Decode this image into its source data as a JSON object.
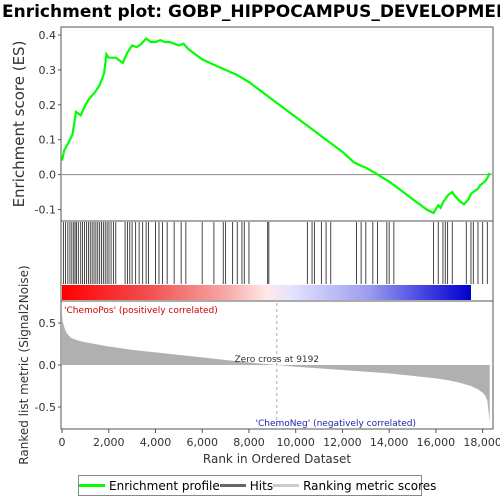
{
  "title": "Enrichment plot: GOBP_HIPPOCAMPUS_DEVELOPMENT",
  "legend": {
    "items": [
      {
        "label": "Enrichment profile",
        "color": "#00ff00"
      },
      {
        "label": "Hits",
        "color": "#666666"
      },
      {
        "label": "Ranking metric scores",
        "color": "#cccccc"
      }
    ]
  },
  "chart_data": [
    {
      "type": "line",
      "name": "enrichment-profile",
      "ylabel": "Enrichment score (ES)",
      "xlim": [
        0,
        18400
      ],
      "ylim": [
        -0.13,
        0.42
      ],
      "yticks": [
        -0.1,
        0.0,
        0.1,
        0.2,
        0.3,
        0.4
      ],
      "ytick_labels": [
        "-0.1",
        "0.0",
        "0.1",
        "0.2",
        "0.3",
        "0.4"
      ],
      "grid": false,
      "color": "#00ff00",
      "x": [
        0,
        100,
        300,
        450,
        600,
        800,
        1000,
        1200,
        1400,
        1600,
        1800,
        1900,
        2000,
        2300,
        2600,
        2800,
        3000,
        3200,
        3400,
        3600,
        3800,
        4000,
        4200,
        4400,
        4600,
        4800,
        5000,
        5200,
        5400,
        5700,
        6000,
        6500,
        7000,
        7500,
        8000,
        8500,
        9000,
        9500,
        10000,
        10500,
        11000,
        11500,
        12000,
        12500,
        12800,
        13000,
        13200,
        13400,
        13700,
        14000,
        14300,
        14700,
        15000,
        15300,
        15600,
        15900,
        16000,
        16100,
        16200,
        16300,
        16400,
        16500,
        16600,
        16700,
        16800,
        17000,
        17200,
        17400,
        17500,
        17700,
        17800,
        17900,
        18000,
        18100,
        18200,
        18300
      ],
      "y": [
        0.04,
        0.07,
        0.095,
        0.115,
        0.18,
        0.17,
        0.2,
        0.22,
        0.235,
        0.255,
        0.29,
        0.345,
        0.335,
        0.335,
        0.32,
        0.35,
        0.37,
        0.365,
        0.375,
        0.39,
        0.38,
        0.38,
        0.385,
        0.38,
        0.38,
        0.375,
        0.37,
        0.375,
        0.36,
        0.345,
        0.33,
        0.315,
        0.3,
        0.285,
        0.265,
        0.24,
        0.215,
        0.19,
        0.165,
        0.14,
        0.115,
        0.09,
        0.065,
        0.035,
        0.025,
        0.02,
        0.012,
        0.005,
        -0.008,
        -0.02,
        -0.035,
        -0.055,
        -0.07,
        -0.085,
        -0.1,
        -0.11,
        -0.098,
        -0.088,
        -0.095,
        -0.08,
        -0.07,
        -0.06,
        -0.055,
        -0.05,
        -0.06,
        -0.075,
        -0.085,
        -0.07,
        -0.055,
        -0.045,
        -0.04,
        -0.03,
        -0.025,
        -0.02,
        -0.01,
        0.005
      ]
    },
    {
      "type": "scatter",
      "name": "hits",
      "xlim": [
        0,
        18400
      ],
      "x": [
        60,
        150,
        250,
        340,
        420,
        500,
        560,
        620,
        700,
        800,
        880,
        960,
        1050,
        1130,
        1210,
        1290,
        1370,
        1450,
        1530,
        1610,
        1690,
        1770,
        1850,
        1930,
        2010,
        2100,
        2200,
        2300,
        2700,
        2800,
        2900,
        3000,
        3150,
        3300,
        3450,
        3600,
        3700,
        4000,
        4150,
        4300,
        4500,
        4800,
        5100,
        5300,
        6000,
        6500,
        6900,
        7000,
        7300,
        7500,
        7700,
        7800,
        8000,
        8800,
        8850,
        10500,
        10700,
        10800,
        11100,
        11300,
        11500,
        12600,
        12800,
        13000,
        13300,
        13500,
        13900,
        14000,
        14200,
        15900,
        16100,
        16300,
        16400,
        16500,
        16700,
        17300,
        17500,
        17600,
        17800,
        18000,
        18200
      ]
    },
    {
      "type": "area",
      "name": "ranking-metric",
      "ylabel": "Ranked list metric (Signal2Noise)",
      "xlabel": "Rank in Ordered Dataset",
      "xlim": [
        0,
        18400
      ],
      "ylim": [
        -0.75,
        0.75
      ],
      "yticks": [
        -0.5,
        0.0,
        0.5
      ],
      "ytick_labels": [
        "-0.5",
        "0.0",
        "0.5"
      ],
      "xticks": [
        0,
        2000,
        4000,
        6000,
        8000,
        10000,
        12000,
        14000,
        16000,
        18000
      ],
      "xtick_labels": [
        "0",
        "2,000",
        "4,000",
        "6,000",
        "8,000",
        "10,000",
        "12,000",
        "14,000",
        "16,000",
        "18,000"
      ],
      "color": "#b0b0b0",
      "x": [
        0,
        30,
        100,
        200,
        400,
        700,
        1000,
        2000,
        3000,
        4000,
        5000,
        6000,
        7000,
        8000,
        9192,
        10000,
        11000,
        12000,
        13000,
        14000,
        15000,
        16000,
        16500,
        17000,
        17500,
        17800,
        18000,
        18100,
        18200,
        18250,
        18300
      ],
      "y": [
        0.6,
        0.52,
        0.45,
        0.38,
        0.32,
        0.29,
        0.27,
        0.22,
        0.18,
        0.15,
        0.12,
        0.09,
        0.06,
        0.03,
        0.0,
        -0.02,
        -0.04,
        -0.06,
        -0.08,
        -0.1,
        -0.13,
        -0.16,
        -0.18,
        -0.21,
        -0.25,
        -0.29,
        -0.33,
        -0.36,
        -0.42,
        -0.55,
        -0.68
      ],
      "zero_cross_label": "Zero cross at 9192",
      "zero_cross_x": 9192,
      "pos_label": "'ChemoPos' (positively correlated)",
      "neg_label": "'ChemoNeg' (negatively correlated)"
    }
  ]
}
